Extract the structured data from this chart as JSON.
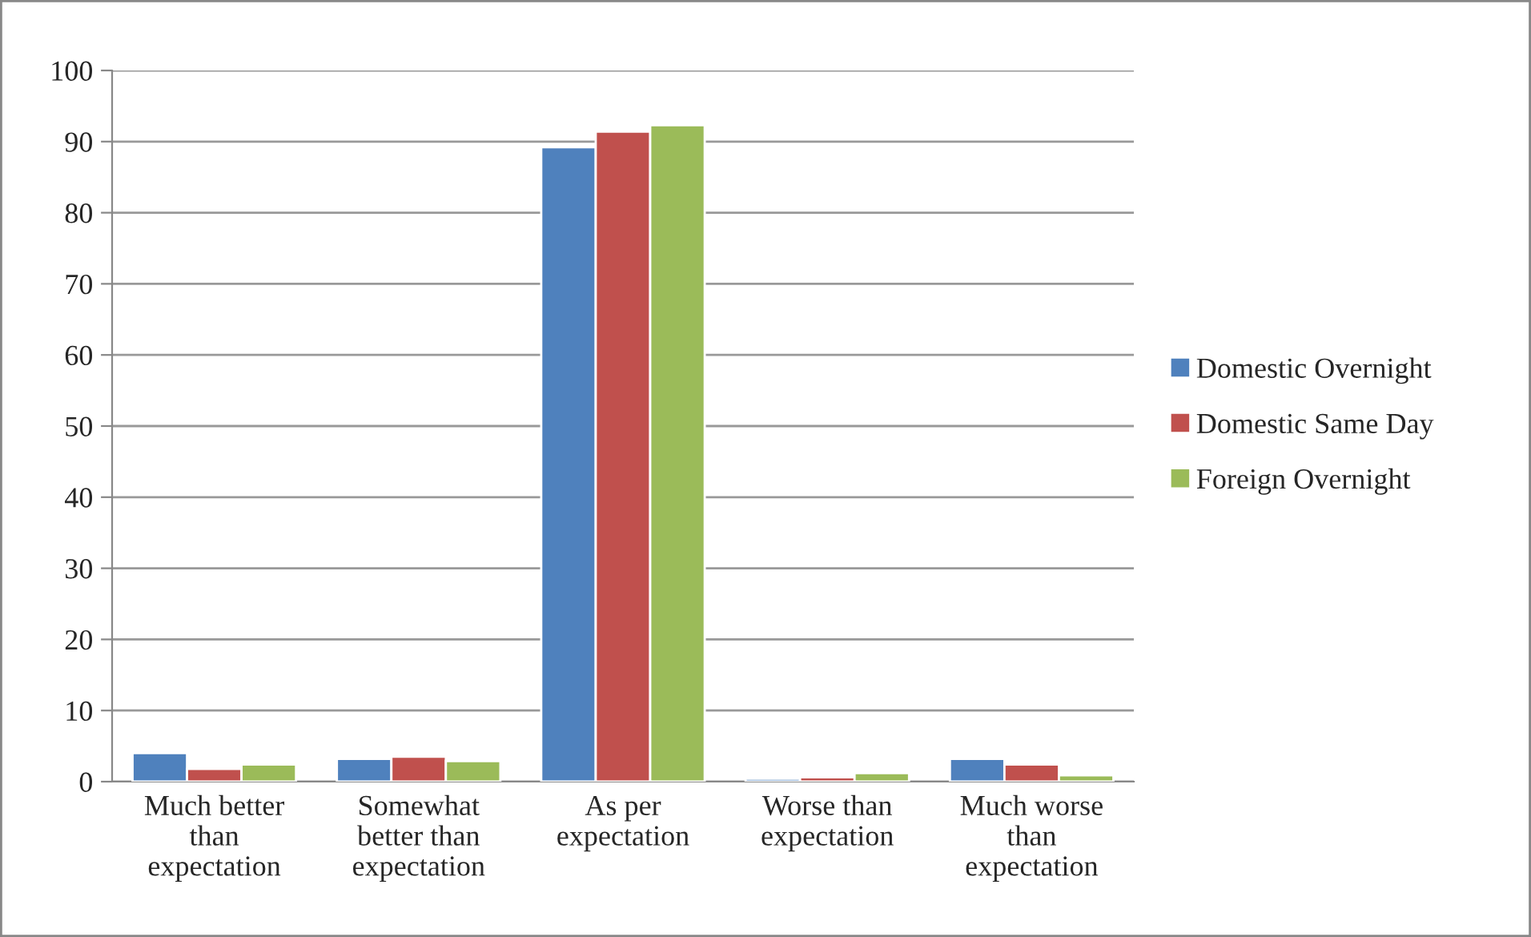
{
  "chart_data": {
    "type": "bar",
    "categories": [
      "Much better\nthan\nexpectation",
      "Somewhat\nbetter than\nexpectation",
      "As per\nexpectation",
      "Worse than\nexpectation",
      "Much worse\nthan\nexpectation"
    ],
    "series": [
      {
        "name": "Domestic Overnight",
        "color": "#4f81bd",
        "values": [
          4.0,
          3.2,
          89.2,
          0.4,
          3.2
        ]
      },
      {
        "name": "Domestic Same Day",
        "color": "#c0504d",
        "values": [
          1.8,
          3.5,
          91.4,
          0.6,
          2.4
        ]
      },
      {
        "name": "Foreign Overnight",
        "color": "#9bbb59",
        "values": [
          2.4,
          2.9,
          92.3,
          1.2,
          0.9
        ]
      }
    ],
    "ylim": [
      0,
      100
    ],
    "yticks": [
      0,
      10,
      20,
      30,
      40,
      50,
      60,
      70,
      80,
      90,
      100
    ],
    "grid": "y",
    "legend": "right"
  }
}
